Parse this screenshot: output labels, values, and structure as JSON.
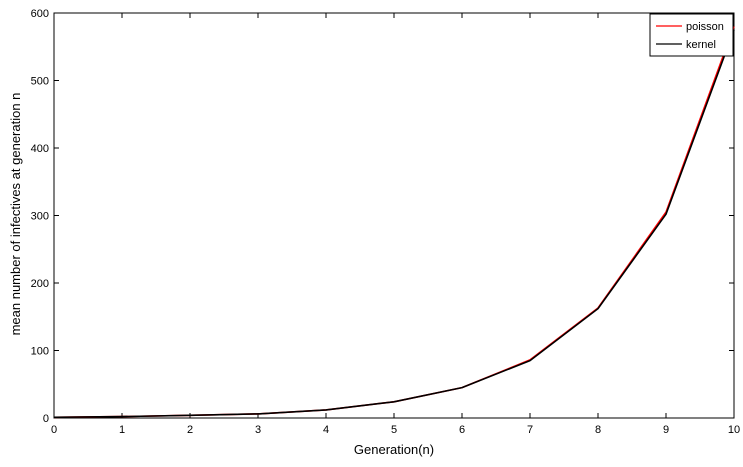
{
  "chart_data": {
    "type": "line",
    "title": "",
    "xlabel": "Generation(n)",
    "ylabel": "mean number of infectives at generation n",
    "xlim": [
      0,
      10
    ],
    "ylim": [
      0,
      600
    ],
    "xticks": [
      0,
      1,
      2,
      3,
      4,
      5,
      6,
      7,
      8,
      9,
      10
    ],
    "yticks": [
      0,
      100,
      200,
      300,
      400,
      500,
      600
    ],
    "grid": false,
    "legend": "top-right",
    "x": [
      0,
      1,
      2,
      3,
      4,
      5,
      6,
      7,
      8,
      9,
      10
    ],
    "series": [
      {
        "name": "poisson",
        "color": "#ff0000",
        "values": [
          1,
          2,
          4,
          6,
          12,
          24,
          45,
          86,
          163,
          305,
          580
        ]
      },
      {
        "name": "kernel",
        "color": "#000000",
        "values": [
          1,
          2,
          4,
          6,
          12,
          24,
          45,
          85,
          162,
          302,
          575
        ]
      }
    ]
  }
}
